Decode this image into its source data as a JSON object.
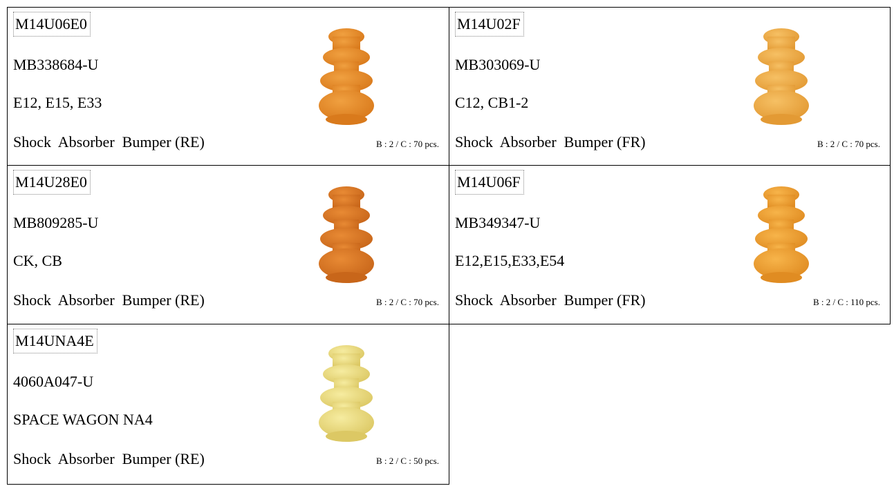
{
  "items": [
    {
      "code": "M14U06E0",
      "part_no": "MB338684-U",
      "models": "E12, E15, E33",
      "description": "Shock  Absorber  Bumper (RE)",
      "packing": "B : 2 / C : 70 pcs."
    },
    {
      "code": "M14U02F",
      "part_no": "MB303069-U",
      "models": "C12, CB1-2",
      "description": "Shock  Absorber  Bumper (FR)",
      "packing": "B : 2 / C : 70 pcs."
    },
    {
      "code": "M14U28E0",
      "part_no": "MB809285-U",
      "models": "CK, CB",
      "description": "Shock  Absorber  Bumper (RE)",
      "packing": "B : 2 / C : 70 pcs."
    },
    {
      "code": "M14U06F",
      "part_no": "MB349347-U",
      "models": "E12,E15,E33,E54",
      "description": "Shock  Absorber  Bumper (FR)",
      "packing": "B : 2 / C : 110 pcs."
    },
    {
      "code": "M14UNA4E",
      "part_no": "4060A047-U",
      "models": "SPACE WAGON NA4",
      "description": "Shock  Absorber  Bumper (RE)",
      "packing": "B : 2 / C : 50 pcs."
    }
  ]
}
